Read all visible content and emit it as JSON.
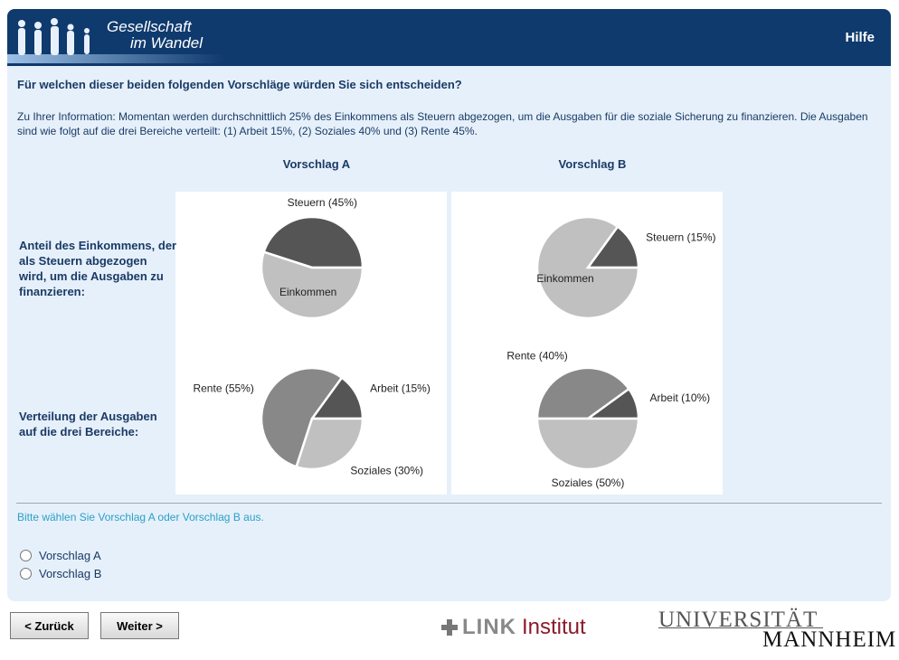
{
  "header": {
    "logo_line1": "Gesellschaft",
    "logo_line2": "im Wandel",
    "help": "Hilfe"
  },
  "question": "Für welchen dieser beiden folgenden Vorschläge würden Sie sich entscheiden?",
  "info": "Zu Ihrer Information: Momentan werden durchschnittlich 25% des Einkommens als Steuern abgezogen, um die Ausgaben für die soziale Sicherung zu finanzieren. Die Ausgaben sind wie folgt auf die drei Bereiche verteilt: (1) Arbeit 15%, (2) Soziales 40% und (3) Rente 45%.",
  "columns": [
    "Vorschlag A",
    "Vorschlag B"
  ],
  "rows": [
    {
      "label": "Anteil des Einkommens, der als Steuern abgezogen wird, um die Ausgaben zu finanzieren:",
      "charts": [
        {
          "type": "pie",
          "slices": [
            {
              "label": "Steuern (45%)",
              "value": 45,
              "color": "#555555"
            },
            {
              "label": "Einkommen",
              "value": 55,
              "color": "#c0c0c0"
            }
          ]
        },
        {
          "type": "pie",
          "slices": [
            {
              "label": "Steuern (15%)",
              "value": 15,
              "color": "#555555"
            },
            {
              "label": "Einkommen",
              "value": 85,
              "color": "#c0c0c0"
            }
          ]
        }
      ]
    },
    {
      "label": "Verteilung der Ausgaben auf die drei Bereiche:",
      "charts": [
        {
          "type": "pie",
          "slices": [
            {
              "label": "Arbeit (15%)",
              "value": 15,
              "color": "#555555"
            },
            {
              "label": "Rente (55%)",
              "value": 55,
              "color": "#888888"
            },
            {
              "label": "Soziales (30%)",
              "value": 30,
              "color": "#c0c0c0"
            }
          ]
        },
        {
          "type": "pie",
          "slices": [
            {
              "label": "Arbeit (10%)",
              "value": 10,
              "color": "#555555"
            },
            {
              "label": "Rente (40%)",
              "value": 40,
              "color": "#888888"
            },
            {
              "label": "Soziales (50%)",
              "value": 50,
              "color": "#c0c0c0"
            }
          ]
        }
      ]
    }
  ],
  "instruction": "Bitte wählen Sie Vorschlag A oder Vorschlag B aus.",
  "options": [
    "Vorschlag A",
    "Vorschlag B"
  ],
  "buttons": {
    "back": "< Zurück",
    "next": "Weiter >"
  },
  "footer": {
    "link_logo": "LINK",
    "link_institut": "Institut",
    "uni_line1": "UNIVERSITÄT",
    "uni_line2": "MANNHEIM"
  }
}
